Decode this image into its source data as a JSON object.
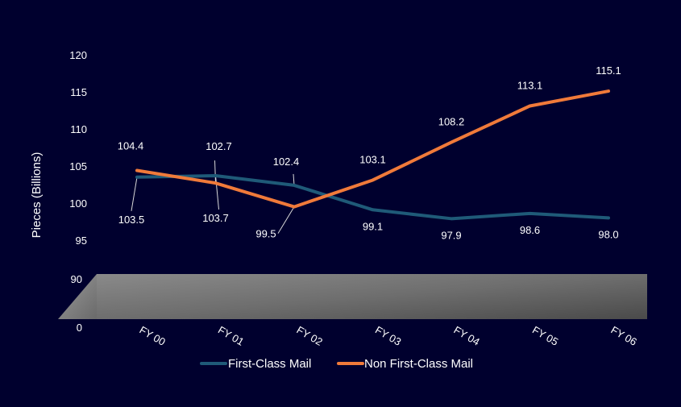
{
  "chart_data": {
    "type": "line",
    "title": "",
    "xlabel": "",
    "ylabel": "Pieces (Billions)",
    "categories": [
      "FY 00",
      "FY 01",
      "FY 02",
      "FY 03",
      "FY 04",
      "FY 05",
      "FY 06"
    ],
    "y_ticks_upper": [
      "95",
      "100",
      "105",
      "110",
      "115",
      "120"
    ],
    "y_ticks_lower": [
      "0",
      "90"
    ],
    "ylim": [
      95,
      120
    ],
    "axis_break": true,
    "series": [
      {
        "name": "First-Class Mail",
        "color": "#1f5a78",
        "values": [
          103.5,
          103.7,
          102.4,
          99.1,
          97.9,
          98.6,
          98.0
        ],
        "labels": [
          "103.5",
          "103.7",
          "102.4",
          "99.1",
          "97.9",
          "98.6",
          "98.0"
        ]
      },
      {
        "name": "Non First-Class Mail",
        "color": "#f07a3a",
        "values": [
          104.4,
          102.7,
          99.5,
          103.1,
          108.2,
          113.1,
          115.1
        ],
        "labels": [
          "104.4",
          "102.7",
          "99.5",
          "103.1",
          "108.2",
          "113.1",
          "115.1"
        ]
      }
    ],
    "legend_position": "bottom",
    "grid": false
  }
}
